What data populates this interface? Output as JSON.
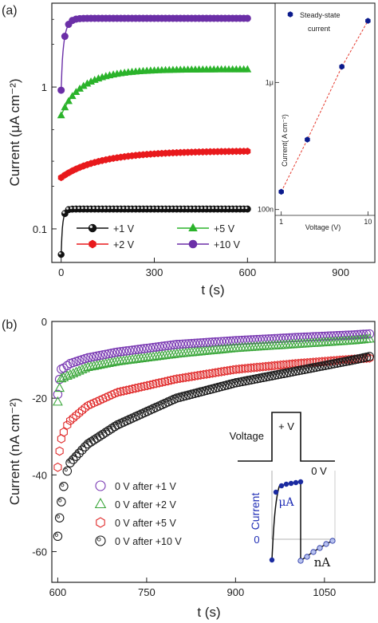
{
  "chart_data": [
    {
      "panel": "(a)",
      "type": "scatter",
      "xlabel": "t (s)",
      "ylabel": "Current (μA cm⁻²)",
      "xlim": [
        -30,
        1010
      ],
      "ylim": [
        0.058,
        3.9
      ],
      "yscale": "log",
      "xticks": [
        0,
        300,
        600,
        900
      ],
      "yticks": [
        {
          "v": 0.1,
          "label": "0.1"
        },
        {
          "v": 1,
          "label": "1"
        }
      ],
      "legend_position": "bottom-center",
      "series": [
        {
          "name": "+1 V",
          "color": "#111111",
          "marker": "sphere",
          "start": 0.066,
          "plateau": 0.138,
          "tau": 6
        },
        {
          "name": "+2 V",
          "color": "#e8191c",
          "marker": "hexagon",
          "start": 0.23,
          "plateau": 0.355,
          "tau": 150
        },
        {
          "name": "+5 V",
          "color": "#2bb32b",
          "marker": "triangle",
          "start": 0.63,
          "plateau": 1.33,
          "tau": 90
        },
        {
          "name": "+10 V",
          "color": "#6b2fa7",
          "marker": "circle",
          "start": 0.95,
          "plateau": 3.05,
          "tau": 12
        }
      ],
      "inset": {
        "type": "scatter",
        "xlabel": "Voltage (V)",
        "ylabel": "Current( A cm⁻²)",
        "xscale": "log",
        "yscale": "log",
        "xlim": [
          0.85,
          12
        ],
        "ylim": [
          9e-08,
          4.2e-06
        ],
        "xticks": [
          {
            "v": 1,
            "label": "1"
          },
          {
            "v": 10,
            "label": "10"
          }
        ],
        "yticks": [
          {
            "v": 1e-07,
            "label": "100n"
          },
          {
            "v": 1e-06,
            "label": "1μ"
          }
        ],
        "legend": "Steady-state current",
        "color": "#0a1a8c",
        "fit_color": "#e53a2e",
        "points": [
          {
            "x": 1,
            "y": 1.38e-07
          },
          {
            "x": 2,
            "y": 3.55e-07
          },
          {
            "x": 5,
            "y": 1.33e-06
          },
          {
            "x": 10,
            "y": 3.05e-06
          }
        ]
      }
    },
    {
      "panel": "(b)",
      "type": "scatter",
      "xlabel": "t (s)",
      "ylabel": "Current (nA cm⁻²)",
      "xlim": [
        590,
        1135
      ],
      "ylim": [
        -68,
        0
      ],
      "xticks": [
        600,
        750,
        900,
        1050
      ],
      "yticks": [
        0,
        -20,
        -40,
        -60
      ],
      "legend_position": "bottom-left",
      "series": [
        {
          "name": "0 V after   +1 V",
          "color": "#7a3ab3",
          "marker": "circle",
          "x": [
            600,
            605,
            612,
            620,
            650,
            700,
            800,
            900,
            1000,
            1100,
            1130
          ],
          "y": [
            -19,
            -12.5,
            -12,
            -11,
            -9.5,
            -8,
            -6,
            -5,
            -4.2,
            -3.5,
            -3.2
          ]
        },
        {
          "name": "0 V after   +2 V",
          "color": "#3aa63a",
          "marker": "triangle",
          "x": [
            600,
            605,
            612,
            620,
            650,
            700,
            800,
            900,
            1000,
            1100,
            1130
          ],
          "y": [
            -21,
            -15,
            -14.5,
            -14,
            -12,
            -10.5,
            -8.5,
            -7,
            -6,
            -5,
            -4.5
          ]
        },
        {
          "name": "0 V after   +5 V",
          "color": "#e02b2b",
          "marker": "hexagon",
          "x": [
            600,
            605,
            612,
            620,
            650,
            700,
            800,
            900,
            1000,
            1100,
            1130
          ],
          "y": [
            -38,
            -31,
            -28,
            -26,
            -22,
            -18.5,
            -15,
            -12.5,
            -11,
            -9.8,
            -9.5
          ]
        },
        {
          "name": "0 V after  +10 V",
          "color": "#1a1a1a",
          "marker": "sphere",
          "x": [
            600,
            605,
            612,
            620,
            650,
            700,
            800,
            900,
            1000,
            1100,
            1130
          ],
          "y": [
            -56,
            -48,
            -41,
            -37,
            -32,
            -27,
            -20,
            -16,
            -13,
            -10,
            -9
          ]
        }
      ],
      "inset": {
        "labels": {
          "voltage": "Voltage",
          "positive": "+ V",
          "zero_v": "0 V",
          "current": "Current",
          "zero": "0",
          "ua": "μA",
          "na": "nA"
        },
        "colors": {
          "current": "#1f2db5",
          "ua": "#1f2db5",
          "dots": "#1a2aa0",
          "light_dots": "#b8c2ee"
        }
      }
    }
  ]
}
